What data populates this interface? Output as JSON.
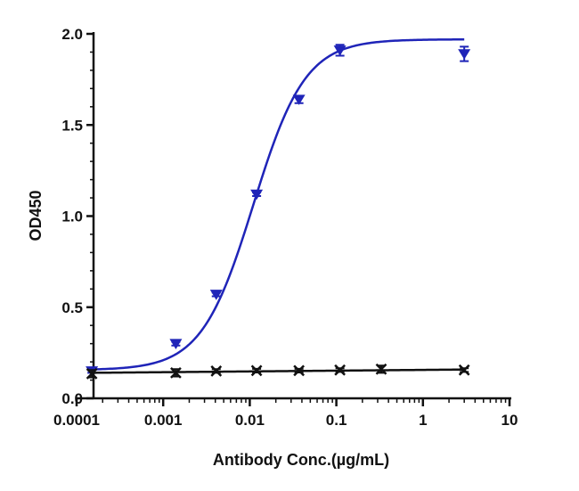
{
  "chart_data": {
    "type": "scatter",
    "title": "",
    "xlabel": "Antibody Conc.(µg/mL)",
    "ylabel": "OD450",
    "x_scale": "log",
    "xlim": [
      0.0001,
      10
    ],
    "ylim": [
      0,
      2.0
    ],
    "x_ticks": [
      "0.0001",
      "0.001",
      "0.01",
      "0.1",
      "1",
      "10"
    ],
    "y_ticks": [
      "0.0",
      "0.5",
      "1.0",
      "1.5",
      "2.0"
    ],
    "grid": false,
    "legend": "none",
    "series": [
      {
        "color": "#1f24b8",
        "marker": "triangle-down",
        "x": [
          0.00015,
          0.0014,
          0.0041,
          0.012,
          0.037,
          0.11,
          3.0
        ],
        "y": [
          0.15,
          0.3,
          0.57,
          1.12,
          1.64,
          1.91,
          1.89
        ],
        "error": [
          0.01,
          0.01,
          0.01,
          0.01,
          0.02,
          0.03,
          0.04
        ],
        "fit": {
          "type": "4PL",
          "bottom": 0.155,
          "top": 1.97,
          "ec50": 0.011,
          "hill": 1.45
        }
      },
      {
        "color": "#111111",
        "marker": "x",
        "x": [
          0.00015,
          0.0014,
          0.0041,
          0.012,
          0.037,
          0.11,
          0.33,
          3.0
        ],
        "y": [
          0.135,
          0.14,
          0.15,
          0.152,
          0.152,
          0.155,
          0.16,
          0.155
        ],
        "error": [
          0.02,
          0.02,
          0.01,
          0.01,
          0.01,
          0.01,
          0.02,
          0.01
        ],
        "fit": {
          "type": "linear-log",
          "y_start": 0.14,
          "y_end": 0.158
        }
      }
    ]
  }
}
